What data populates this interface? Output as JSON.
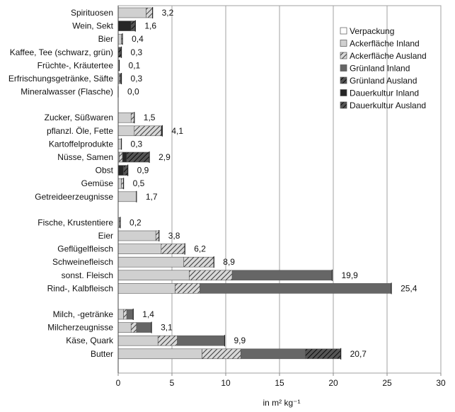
{
  "chart_data": {
    "type": "bar",
    "orientation": "horizontal",
    "stacked": true,
    "xlabel": "in m² kg⁻¹",
    "xlim": [
      0,
      30
    ],
    "xticks": [
      0,
      5,
      10,
      15,
      20,
      25,
      30
    ],
    "grid": "vertical",
    "legend_position": "top-right",
    "series": [
      {
        "name": "Verpackung",
        "color": "#ffffff",
        "pattern": "none"
      },
      {
        "name": "Ackerfläche Inland",
        "color": "#d0d0d0",
        "pattern": "none"
      },
      {
        "name": "Ackerfläche Ausland",
        "color": "#d0d0d0",
        "pattern": "hatch"
      },
      {
        "name": "Grünland Inland",
        "color": "#666666",
        "pattern": "none"
      },
      {
        "name": "Grünland Ausland",
        "color": "#666666",
        "pattern": "hatch"
      },
      {
        "name": "Dauerkultur Inland",
        "color": "#262626",
        "pattern": "none"
      },
      {
        "name": "Dauerkultur Ausland",
        "color": "#262626",
        "pattern": "hatch"
      }
    ],
    "groups": [
      {
        "items": [
          {
            "label": "Spirituosen",
            "total_label": "3,2",
            "values": [
              0,
              2.6,
              0.6,
              0,
              0,
              0,
              0
            ]
          },
          {
            "label": "Wein, Sekt",
            "total_label": "1,6",
            "values": [
              0,
              0,
              0,
              0,
              0,
              1.2,
              0.4
            ]
          },
          {
            "label": "Bier",
            "total_label": "0,4",
            "values": [
              0,
              0.3,
              0.1,
              0,
              0,
              0,
              0
            ]
          },
          {
            "label": "Kaffee, Tee (schwarz, grün)",
            "total_label": "0,3",
            "values": [
              0,
              0,
              0,
              0,
              0,
              0,
              0.3
            ]
          },
          {
            "label": "Früchte-, Kräutertee",
            "total_label": "0,1",
            "values": [
              0,
              0.1,
              0,
              0,
              0,
              0,
              0
            ]
          },
          {
            "label": "Erfrischungsgetränke, Säfte",
            "total_label": "0,3",
            "values": [
              0,
              0.1,
              0.1,
              0,
              0,
              0.1,
              0
            ]
          },
          {
            "label": "Mineralwasser (Flasche)",
            "total_label": "0,0",
            "values": [
              0,
              0,
              0,
              0,
              0,
              0,
              0
            ]
          }
        ]
      },
      {
        "items": [
          {
            "label": "Zucker, Süßwaren",
            "total_label": "1,5",
            "values": [
              0,
              1.2,
              0.3,
              0,
              0,
              0,
              0
            ]
          },
          {
            "label": "pflanzl. Öle, Fette",
            "total_label": "4,1",
            "values": [
              0,
              1.5,
              2.5,
              0,
              0,
              0.1,
              0
            ]
          },
          {
            "label": "Kartoffelprodukte",
            "total_label": "0,3",
            "values": [
              0,
              0.3,
              0,
              0,
              0,
              0,
              0
            ]
          },
          {
            "label": "Nüsse, Samen",
            "total_label": "2,9",
            "values": [
              0,
              0.1,
              0.3,
              0,
              0,
              0.4,
              2.1
            ]
          },
          {
            "label": "Obst",
            "total_label": "0,9",
            "values": [
              0,
              0,
              0,
              0,
              0,
              0.5,
              0.4
            ]
          },
          {
            "label": "Gemüse",
            "total_label": "0,5",
            "values": [
              0,
              0.3,
              0.2,
              0,
              0,
              0,
              0
            ]
          },
          {
            "label": "Getreideerzeugnisse",
            "total_label": "1,7",
            "values": [
              0,
              1.7,
              0,
              0,
              0,
              0,
              0
            ]
          }
        ]
      },
      {
        "items": [
          {
            "label": "Fische, Krustentiere",
            "total_label": "0,2",
            "values": [
              0,
              0.1,
              0.1,
              0,
              0,
              0,
              0
            ]
          },
          {
            "label": "Eier",
            "total_label": "3,8",
            "values": [
              0,
              3.5,
              0.3,
              0,
              0,
              0,
              0
            ]
          },
          {
            "label": "Geflügelfleisch",
            "total_label": "6,2",
            "values": [
              0,
              4.0,
              2.2,
              0,
              0,
              0,
              0
            ]
          },
          {
            "label": "Schweinefleisch",
            "total_label": "8,9",
            "values": [
              0,
              6.1,
              2.8,
              0,
              0,
              0,
              0
            ]
          },
          {
            "label": "sonst. Fleisch",
            "total_label": "19,9",
            "values": [
              0,
              6.6,
              4.0,
              9.3,
              0,
              0,
              0
            ]
          },
          {
            "label": "Rind-, Kalbfleisch",
            "total_label": "25,4",
            "values": [
              0,
              5.3,
              2.3,
              17.8,
              0,
              0,
              0
            ]
          }
        ]
      },
      {
        "items": [
          {
            "label": "Milch, -getränke",
            "total_label": "1,4",
            "values": [
              0,
              0.5,
              0.3,
              0.6,
              0,
              0,
              0
            ]
          },
          {
            "label": "Milcherzeugnisse",
            "total_label": "3,1",
            "values": [
              0,
              1.2,
              0.5,
              1.4,
              0,
              0,
              0
            ]
          },
          {
            "label": "Käse, Quark",
            "total_label": "9,9",
            "values": [
              0,
              3.7,
              1.8,
              4.4,
              0,
              0,
              0
            ]
          },
          {
            "label": "Butter",
            "total_label": "20,7",
            "values": [
              0,
              7.8,
              3.6,
              6.0,
              3.3,
              0,
              0
            ]
          }
        ]
      }
    ]
  }
}
